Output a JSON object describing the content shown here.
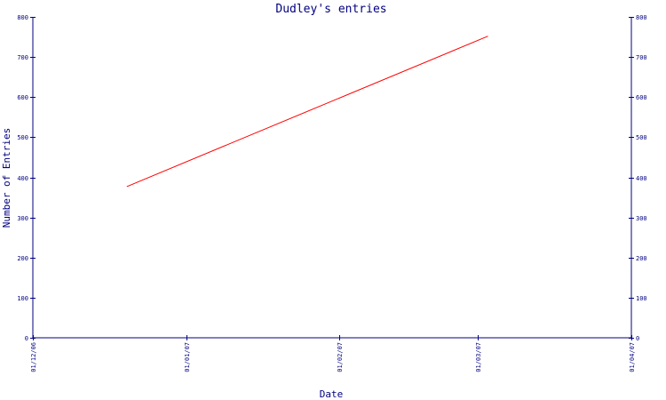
{
  "chart_data": {
    "type": "line",
    "title": "Dudley's entries",
    "xlabel": "Date",
    "ylabel": "Number of Entries",
    "ylim": [
      0,
      800
    ],
    "yticks": [
      0,
      100,
      200,
      300,
      400,
      500,
      600,
      700,
      800
    ],
    "xlim": [
      "2006-12-01",
      "2007-04-01"
    ],
    "xticks": [
      "01/12/06",
      "01/01/07",
      "01/02/07",
      "01/03/07",
      "01/04/07"
    ],
    "xtick_dates": [
      "2006-12-01",
      "2007-01-01",
      "2007-02-01",
      "2007-03-01",
      "2007-04-01"
    ],
    "right_axis": true,
    "grid": false,
    "colors": {
      "axis": "#000080",
      "series": "#ff0000"
    },
    "series": [
      {
        "x": [
          "2006-12-20",
          "2007-03-03"
        ],
        "y": [
          377,
          752
        ]
      }
    ]
  }
}
